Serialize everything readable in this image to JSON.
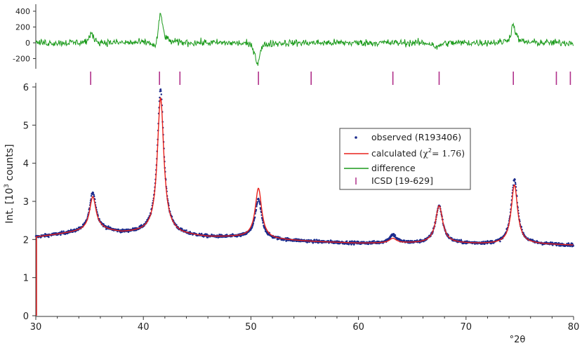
{
  "chart_data": {
    "type": "scatter",
    "title": "",
    "xlabel": "°2θ",
    "ylabel": "Int. [10³ counts]",
    "xlim": [
      30,
      80
    ],
    "xticks": [
      "30",
      "40",
      "50",
      "60",
      "70",
      "80"
    ],
    "main_panel": {
      "ylim": [
        0,
        6.2
      ],
      "yticks": [
        "0",
        "1",
        "2",
        "3",
        "4",
        "5",
        "6"
      ],
      "baseline": [
        [
          30,
          2.06
        ],
        [
          34,
          2.2
        ],
        [
          36,
          2.25
        ],
        [
          38,
          2.17
        ],
        [
          40,
          2.18
        ],
        [
          42,
          2.2
        ],
        [
          43.5,
          2.12
        ],
        [
          46,
          2.06
        ],
        [
          50,
          2.06
        ],
        [
          52,
          2.0
        ],
        [
          56,
          1.94
        ],
        [
          60,
          1.9
        ],
        [
          64,
          1.9
        ],
        [
          68,
          1.9
        ],
        [
          72,
          1.88
        ],
        [
          76,
          1.88
        ],
        [
          80,
          1.85
        ]
      ],
      "peaks": [
        {
          "x": 35.3,
          "calc_height": 0.88,
          "obs_height": 1.0,
          "width": 0.36
        },
        {
          "x": 41.6,
          "calc_height": 3.52,
          "obs_height": 3.75,
          "width": 0.36
        },
        {
          "x": 50.7,
          "calc_height": 1.3,
          "obs_height": 1.0,
          "width": 0.36
        },
        {
          "x": 63.2,
          "calc_height": 0.12,
          "obs_height": 0.22,
          "width": 0.4
        },
        {
          "x": 67.5,
          "calc_height": 0.98,
          "obs_height": 0.98,
          "width": 0.4
        },
        {
          "x": 74.5,
          "calc_height": 1.55,
          "obs_height": 1.7,
          "width": 0.36
        }
      ],
      "noise": 0.04
    },
    "difference_panel": {
      "ylim": [
        -300,
        450
      ],
      "yticks": [
        "400",
        "200",
        "0",
        "-200"
      ],
      "noise": 45,
      "features": [
        {
          "x": 35.2,
          "amplitude": 110
        },
        {
          "x": 41.6,
          "amplitude": 380
        },
        {
          "x": 41.1,
          "amplitude": -120
        },
        {
          "x": 50.6,
          "amplitude": -260
        },
        {
          "x": 67.3,
          "amplitude": -70
        },
        {
          "x": 74.4,
          "amplitude": 230
        }
      ]
    },
    "reflection_positions": [
      35.1,
      41.5,
      43.4,
      50.7,
      55.6,
      63.2,
      67.5,
      74.4,
      78.4,
      79.7
    ],
    "series": [
      {
        "name": "observed (R193406)",
        "style": "points",
        "color": "#1b2a8c"
      },
      {
        "name": "calculated",
        "style": "line",
        "color": "#e8221c"
      },
      {
        "name": "difference",
        "style": "line",
        "color": "#1a9a1a"
      },
      {
        "name": "ICSD [19-629]",
        "style": "tick",
        "color": "#b0308a"
      }
    ],
    "legend": {
      "placement": "center-right",
      "observed": "observed (R193406)",
      "calculated_prefix": "calculated (",
      "chi_symbol": "χ",
      "chi_sup": "2",
      "chi_value": "= 1.76",
      "calculated_suffix": ")",
      "difference": "difference",
      "icsd": "ICSD [19-629]"
    },
    "ylabel_parts": {
      "prefix": "Int. [10",
      "sup": "3",
      "suffix": " counts]"
    }
  }
}
